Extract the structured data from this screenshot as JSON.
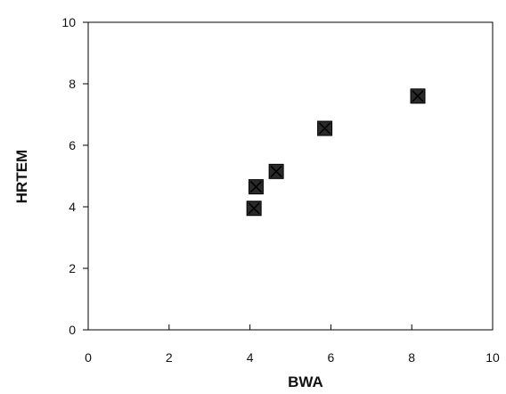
{
  "chart_data": {
    "type": "scatter",
    "title": "",
    "xlabel": "BWA",
    "ylabel": "HRTEM",
    "xlim": [
      0,
      10
    ],
    "ylim": [
      0,
      10
    ],
    "x_ticks": [
      "0",
      "2",
      "4",
      "6",
      "8",
      "10"
    ],
    "y_ticks": [
      "0",
      "2",
      "4",
      "6",
      "8",
      "10"
    ],
    "grid": false,
    "legend": "none",
    "marker": "filled square with x",
    "colors": {
      "marker_fill": "#2a2a2a",
      "marker_cross": "#000000",
      "axis": "#000000"
    },
    "points": [
      {
        "x": 4.1,
        "y": 3.95
      },
      {
        "x": 4.15,
        "y": 4.65
      },
      {
        "x": 4.65,
        "y": 5.15
      },
      {
        "x": 5.85,
        "y": 6.55
      },
      {
        "x": 8.15,
        "y": 7.6
      }
    ]
  }
}
